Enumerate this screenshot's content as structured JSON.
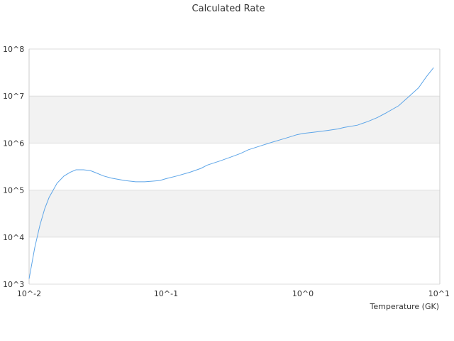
{
  "chart_data": {
    "type": "line",
    "title": "Calculated Rate",
    "xlabel": "Temperature (GK)",
    "ylabel": "",
    "x_scale": "log",
    "y_scale": "log",
    "xlim": [
      0.01,
      10
    ],
    "ylim": [
      1000,
      100000000
    ],
    "x_ticks": [
      {
        "value": 0.01,
        "label": "10^-2"
      },
      {
        "value": 0.1,
        "label": "10^-1"
      },
      {
        "value": 1,
        "label": "10^0"
      },
      {
        "value": 10,
        "label": "10^1"
      }
    ],
    "y_ticks": [
      {
        "value": 1000,
        "label": "10^3"
      },
      {
        "value": 10000,
        "label": "10^4"
      },
      {
        "value": 100000,
        "label": "10^5"
      },
      {
        "value": 1000000,
        "label": "10^6"
      },
      {
        "value": 10000000,
        "label": "10^7"
      },
      {
        "value": 100000000,
        "label": "10^8"
      }
    ],
    "grid": "horizontal alternating bands",
    "legend": "none",
    "colors": {
      "line": "#5da5e8",
      "band": "#f2f2f2",
      "grid": "#dddddd",
      "axis": "#cccccc"
    },
    "series": [
      {
        "x": [
          0.01,
          0.011,
          0.012,
          0.013,
          0.014,
          0.015,
          0.016,
          0.018,
          0.02,
          0.022,
          0.025,
          0.028,
          0.03,
          0.035,
          0.04,
          0.05,
          0.06,
          0.07,
          0.08,
          0.09,
          0.1,
          0.12,
          0.15,
          0.18,
          0.2,
          0.25,
          0.3,
          0.35,
          0.4,
          0.5,
          0.6,
          0.7,
          0.8,
          0.9,
          1.0,
          1.2,
          1.5,
          1.8,
          2.0,
          2.5,
          3.0,
          3.5,
          4.0,
          5.0,
          6.0,
          7.0,
          8.0,
          9.0
        ],
        "y": [
          1300,
          6000,
          18000,
          40000,
          70000,
          100000,
          140000,
          200000,
          240000,
          270000,
          270000,
          260000,
          240000,
          200000,
          180000,
          160000,
          150000,
          150000,
          155000,
          160000,
          175000,
          200000,
          240000,
          290000,
          340000,
          420000,
          510000,
          600000,
          720000,
          890000,
          1050000,
          1200000,
          1350000,
          1500000,
          1600000,
          1700000,
          1850000,
          2000000,
          2150000,
          2400000,
          2900000,
          3500000,
          4300000,
          6200000,
          10000000,
          15000000,
          26000000,
          40000000
        ]
      }
    ]
  }
}
